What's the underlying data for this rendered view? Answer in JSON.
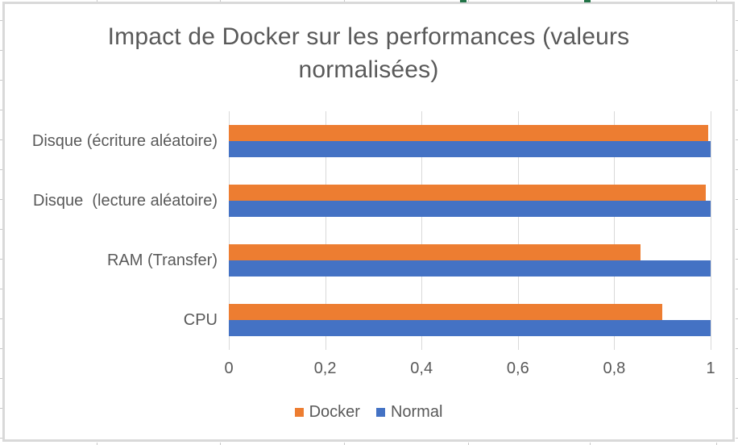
{
  "window": {
    "background": "#ffffff",
    "chart_border_color": "#d9d9d9"
  },
  "chart_data": {
    "type": "bar",
    "orientation": "horizontal",
    "title": "Impact de Docker sur les performances (valeurs normalisées)",
    "categories": [
      "Disque (écriture aléatoire)",
      "Disque  (lecture aléatoire)",
      "RAM (Transfer)",
      "CPU"
    ],
    "series": [
      {
        "name": "Docker",
        "color": "#ED7D31",
        "values": [
          0.995,
          0.99,
          0.855,
          0.9
        ]
      },
      {
        "name": "Normal",
        "color": "#4472C4",
        "values": [
          1,
          1,
          1,
          1
        ]
      }
    ],
    "x_axis": {
      "min": 0,
      "max": 1,
      "tick_values": [
        0,
        0.2,
        0.4,
        0.6,
        0.8,
        1
      ],
      "tick_labels": [
        "0",
        "0,2",
        "0,4",
        "0,6",
        "0,8",
        "1"
      ]
    },
    "grid": true,
    "legend_position": "bottom",
    "text_color": "#595959",
    "gridline_color": "#d9d9d9"
  }
}
